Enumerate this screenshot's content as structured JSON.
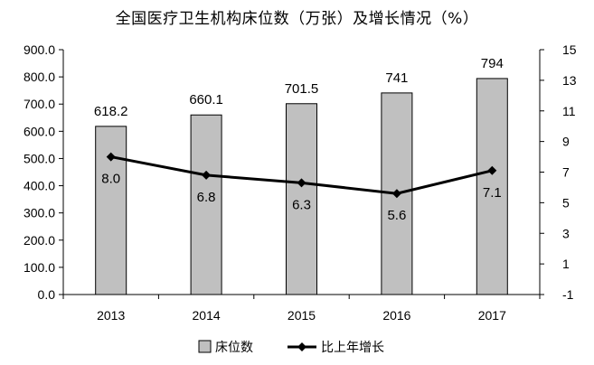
{
  "chart_data": {
    "type": "bar",
    "title": "全国医疗卫生机构床位数（万张）及增长情况（%）",
    "categories": [
      "2013",
      "2014",
      "2015",
      "2016",
      "2017"
    ],
    "series": [
      {
        "name": "床位数",
        "type": "bar",
        "axis": "left",
        "values": [
          618.2,
          660.1,
          701.5,
          741,
          794
        ],
        "labels": [
          "618.2",
          "660.1",
          "701.5",
          "741",
          "794"
        ],
        "color": "#c0c0c0"
      },
      {
        "name": "比上年增长",
        "type": "line",
        "axis": "right",
        "values": [
          8.0,
          6.8,
          6.3,
          5.6,
          7.1
        ],
        "labels": [
          "8.0",
          "6.8",
          "6.3",
          "5.6",
          "7.1"
        ],
        "color": "#000000"
      }
    ],
    "y_left": {
      "ylim": [
        0,
        900
      ],
      "ticks": [
        0,
        100,
        200,
        300,
        400,
        500,
        600,
        700,
        800,
        900
      ],
      "tick_labels": [
        "0.0",
        "100.0",
        "200.0",
        "300.0",
        "400.0",
        "500.0",
        "600.0",
        "700.0",
        "800.0",
        "900.0"
      ]
    },
    "y_right": {
      "ylim": [
        -1,
        15
      ],
      "ticks": [
        -1,
        1,
        3,
        5,
        7,
        9,
        11,
        13,
        15
      ],
      "tick_labels": [
        "-1",
        "1",
        "3",
        "5",
        "7",
        "9",
        "11",
        "13",
        "15"
      ]
    },
    "grid": false,
    "legend_position": "bottom"
  }
}
